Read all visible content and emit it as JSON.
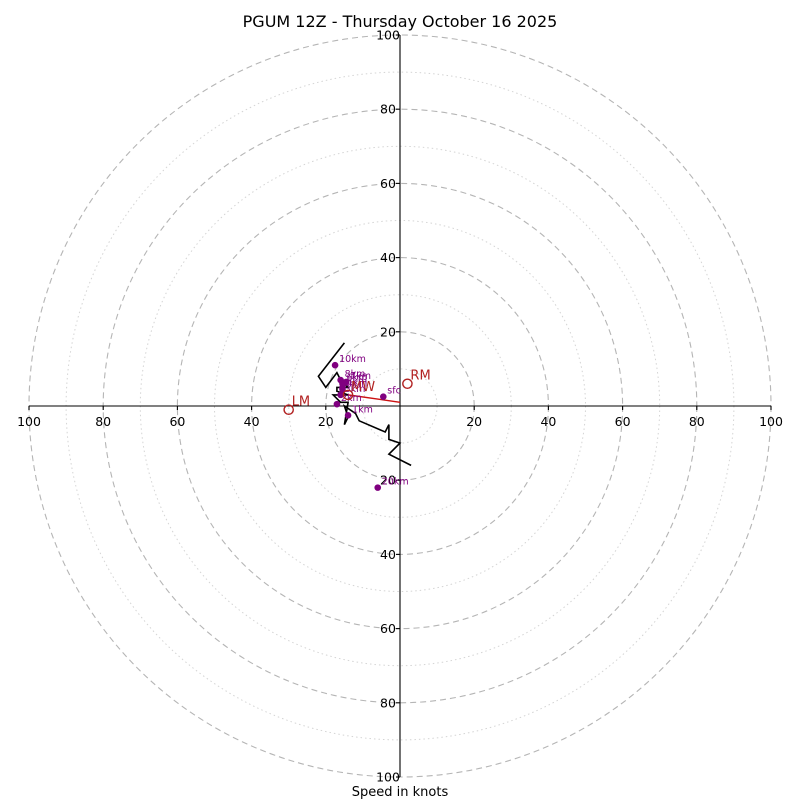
{
  "chart_data": {
    "type": "hodograph",
    "title": "PGUM 12Z - Thursday October 16 2025",
    "xlabel": "Speed in knots",
    "units": "knots",
    "axis_range": [
      -100,
      100
    ],
    "ring_major": [
      20,
      40,
      60,
      80,
      100
    ],
    "ring_minor": [
      10,
      30,
      50,
      70,
      90
    ],
    "x_tick_labels": [
      "100",
      "80",
      "60",
      "40",
      "20",
      "20",
      "40",
      "60",
      "80",
      "100"
    ],
    "y_tick_labels_top": [
      "20",
      "40",
      "60",
      "80",
      "100"
    ],
    "y_tick_labels_bottom": [
      "20",
      "40",
      "60",
      "80",
      "100"
    ],
    "hodograph_line": {
      "color": "#000000",
      "points": [
        {
          "u": 3,
          "v": -16
        },
        {
          "u": -3,
          "v": -13
        },
        {
          "u": 0,
          "v": -10
        },
        {
          "u": -3,
          "v": -9
        },
        {
          "u": -3,
          "v": -5
        },
        {
          "u": -4,
          "v": -7
        },
        {
          "u": -11,
          "v": -4
        },
        {
          "u": -12,
          "v": -2
        },
        {
          "u": -15,
          "v": 0
        },
        {
          "u": -14,
          "v": -3
        },
        {
          "u": -15,
          "v": -5
        },
        {
          "u": -14,
          "v": 1
        },
        {
          "u": -16,
          "v": 1
        },
        {
          "u": -18,
          "v": 3
        },
        {
          "u": -14,
          "v": 3
        },
        {
          "u": -17,
          "v": 4
        },
        {
          "u": -17,
          "v": 5
        },
        {
          "u": -14,
          "v": 5
        },
        {
          "u": -15,
          "v": 6
        },
        {
          "u": -16,
          "v": 7
        },
        {
          "u": -17,
          "v": 9
        },
        {
          "u": -20,
          "v": 5
        },
        {
          "u": -22,
          "v": 8
        },
        {
          "u": -15,
          "v": 17
        }
      ]
    },
    "height_markers": [
      {
        "label": "sfc",
        "u": -4.5,
        "v": 2.5
      },
      {
        "label": "1km",
        "u": -14,
        "v": -2.5
      },
      {
        "label": "2km",
        "u": -17,
        "v": 0.5
      },
      {
        "label": "3km",
        "u": -16,
        "v": 3
      },
      {
        "label": "4km",
        "u": -15.5,
        "v": 4.5
      },
      {
        "label": "5km",
        "u": -15.5,
        "v": 5
      },
      {
        "label": "6km",
        "u": -15.5,
        "v": 6
      },
      {
        "label": "7km",
        "u": -14.5,
        "v": 6.5
      },
      {
        "label": "8km",
        "u": -16,
        "v": 7
      },
      {
        "label": "10km",
        "u": -17.5,
        "v": 11
      },
      {
        "label": "20km",
        "u": -6,
        "v": -22
      }
    ],
    "storm_motion": [
      {
        "label": "RM",
        "u": 2,
        "v": 6
      },
      {
        "label": "LM",
        "u": -30,
        "v": -1
      },
      {
        "label": "MW",
        "u": -14,
        "v": 3
      }
    ],
    "mean_wind_line": {
      "from": {
        "u": 0,
        "v": 1
      },
      "to": {
        "u": -14,
        "v": 3
      }
    },
    "colors": {
      "hodograph": "#000000",
      "heights": "#800080",
      "motion": "#b22222",
      "mean_wind": "#cc1111"
    }
  }
}
